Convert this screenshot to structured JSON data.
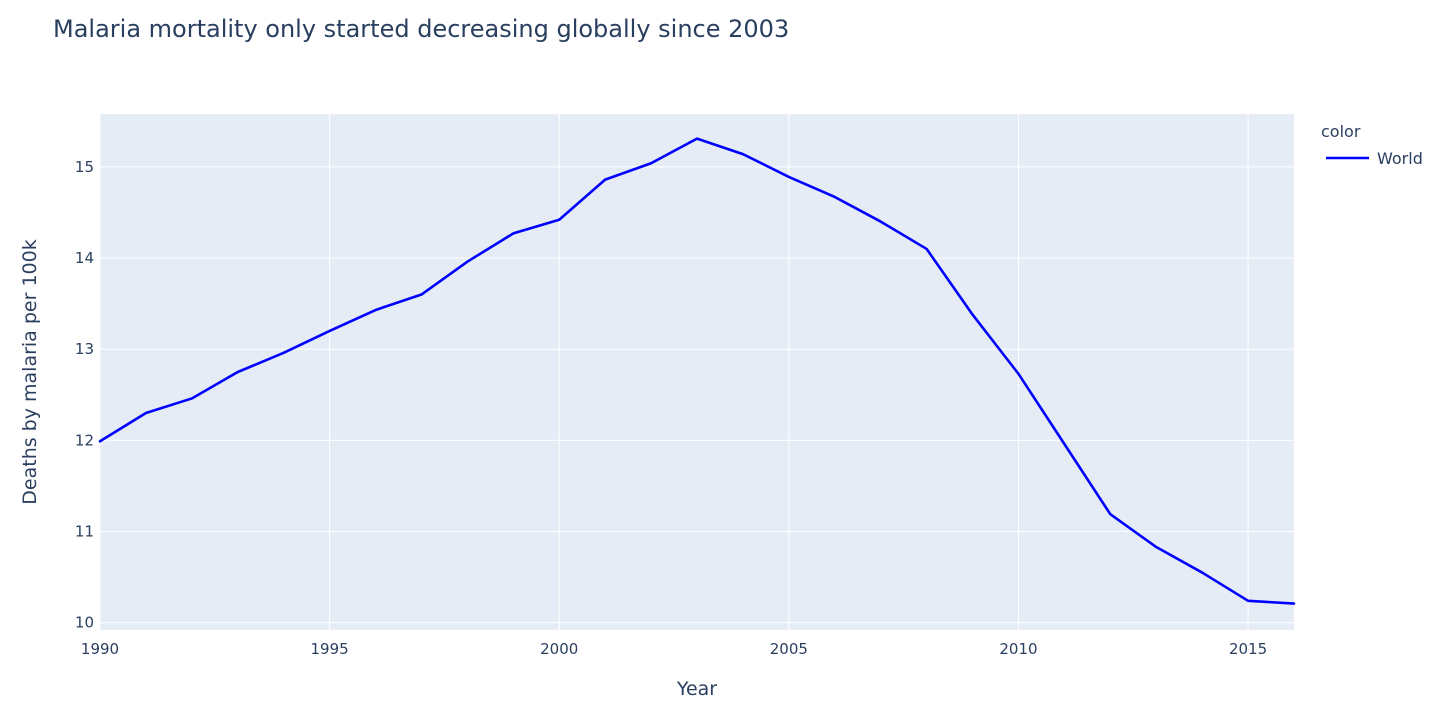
{
  "chart_data": {
    "type": "line",
    "title": "Malaria mortality only started decreasing globally since 2003",
    "xlabel": "Year",
    "ylabel": "Deaths by malaria per 100k",
    "xlim": [
      1990,
      2016
    ],
    "ylim": [
      9.92,
      15.58
    ],
    "x_ticks": [
      1990,
      1995,
      2000,
      2005,
      2010,
      2015
    ],
    "y_ticks": [
      10,
      11,
      12,
      13,
      14,
      15
    ],
    "grid": true,
    "background_color": "#e5ecf6",
    "grid_color": "#ffffff",
    "legend": {
      "title": "color",
      "position": "top-right"
    },
    "series": [
      {
        "name": "World",
        "color": "#0000ff",
        "x": [
          1990,
          1991,
          1992,
          1993,
          1994,
          1995,
          1996,
          1997,
          1998,
          1999,
          2000,
          2001,
          2002,
          2003,
          2004,
          2005,
          2006,
          2007,
          2008,
          2009,
          2010,
          2011,
          2012,
          2013,
          2014,
          2015,
          2016
        ],
        "y": [
          11.99,
          12.3,
          12.46,
          12.75,
          12.96,
          13.2,
          13.43,
          13.6,
          13.96,
          14.27,
          14.42,
          14.86,
          15.04,
          15.31,
          15.14,
          14.89,
          14.67,
          14.4,
          14.1,
          13.38,
          12.73,
          11.96,
          11.19,
          10.83,
          10.55,
          10.24,
          10.21
        ]
      }
    ]
  }
}
